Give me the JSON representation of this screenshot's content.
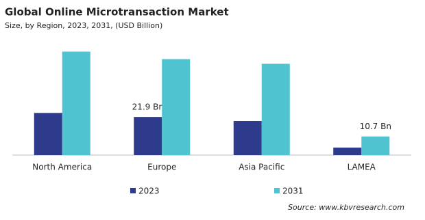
{
  "chart_data": {
    "type": "bar",
    "title": "Global Online Microtransaction Market",
    "subtitle": "Size, by Region, 2023, 2031, (USD Billion)",
    "source": "Source: www.kbvresearch.com",
    "categories": [
      "North America",
      "Europe",
      "Asia Pacific",
      "LAMEA"
    ],
    "series": [
      {
        "name": "2023",
        "color": "#2e3a8c",
        "values": [
          24.2,
          21.9,
          19.6,
          4.3
        ],
        "value_labels": [
          null,
          "21.9 Bn",
          null,
          null
        ]
      },
      {
        "name": "2031",
        "color": "#4fc4d0",
        "values": [
          59.4,
          55.1,
          52.4,
          10.7
        ],
        "value_labels": [
          null,
          null,
          null,
          "10.7 Bn"
        ]
      }
    ],
    "ylim": [
      0,
      60
    ]
  }
}
